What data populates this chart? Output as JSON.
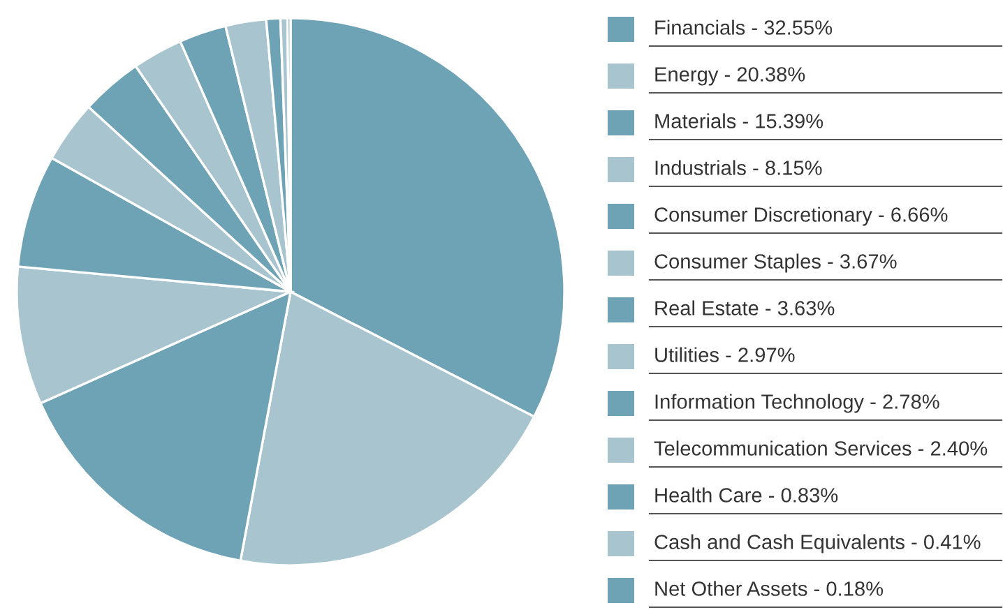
{
  "chart_data": {
    "type": "pie",
    "categories": [
      "Financials - 32.55%",
      "Energy - 20.38%",
      "Materials - 15.39%",
      "Industrials - 8.15%",
      "Consumer Discretionary - 6.66%",
      "Consumer Staples - 3.67%",
      "Real Estate - 3.63%",
      "Utilities - 2.97%",
      "Information Technology - 2.78%",
      "Telecommunication Services - 2.40%",
      "Health Care - 0.83%",
      "Cash and Cash Equivalents - 0.41%",
      "Net Other Assets - 0.18%"
    ],
    "values": [
      32.55,
      20.38,
      15.39,
      8.15,
      6.66,
      3.67,
      3.63,
      2.97,
      2.78,
      2.4,
      0.83,
      0.41,
      0.18
    ],
    "colors": [
      "#6ea3b6",
      "#a8c5cf",
      "#6ea3b6",
      "#a8c5cf",
      "#6ea3b6",
      "#a8c5cf",
      "#6ea3b6",
      "#a8c5cf",
      "#6ea3b6",
      "#a8c5cf",
      "#6ea3b6",
      "#a8c5cf",
      "#6ea3b6"
    ],
    "legend": "right"
  }
}
